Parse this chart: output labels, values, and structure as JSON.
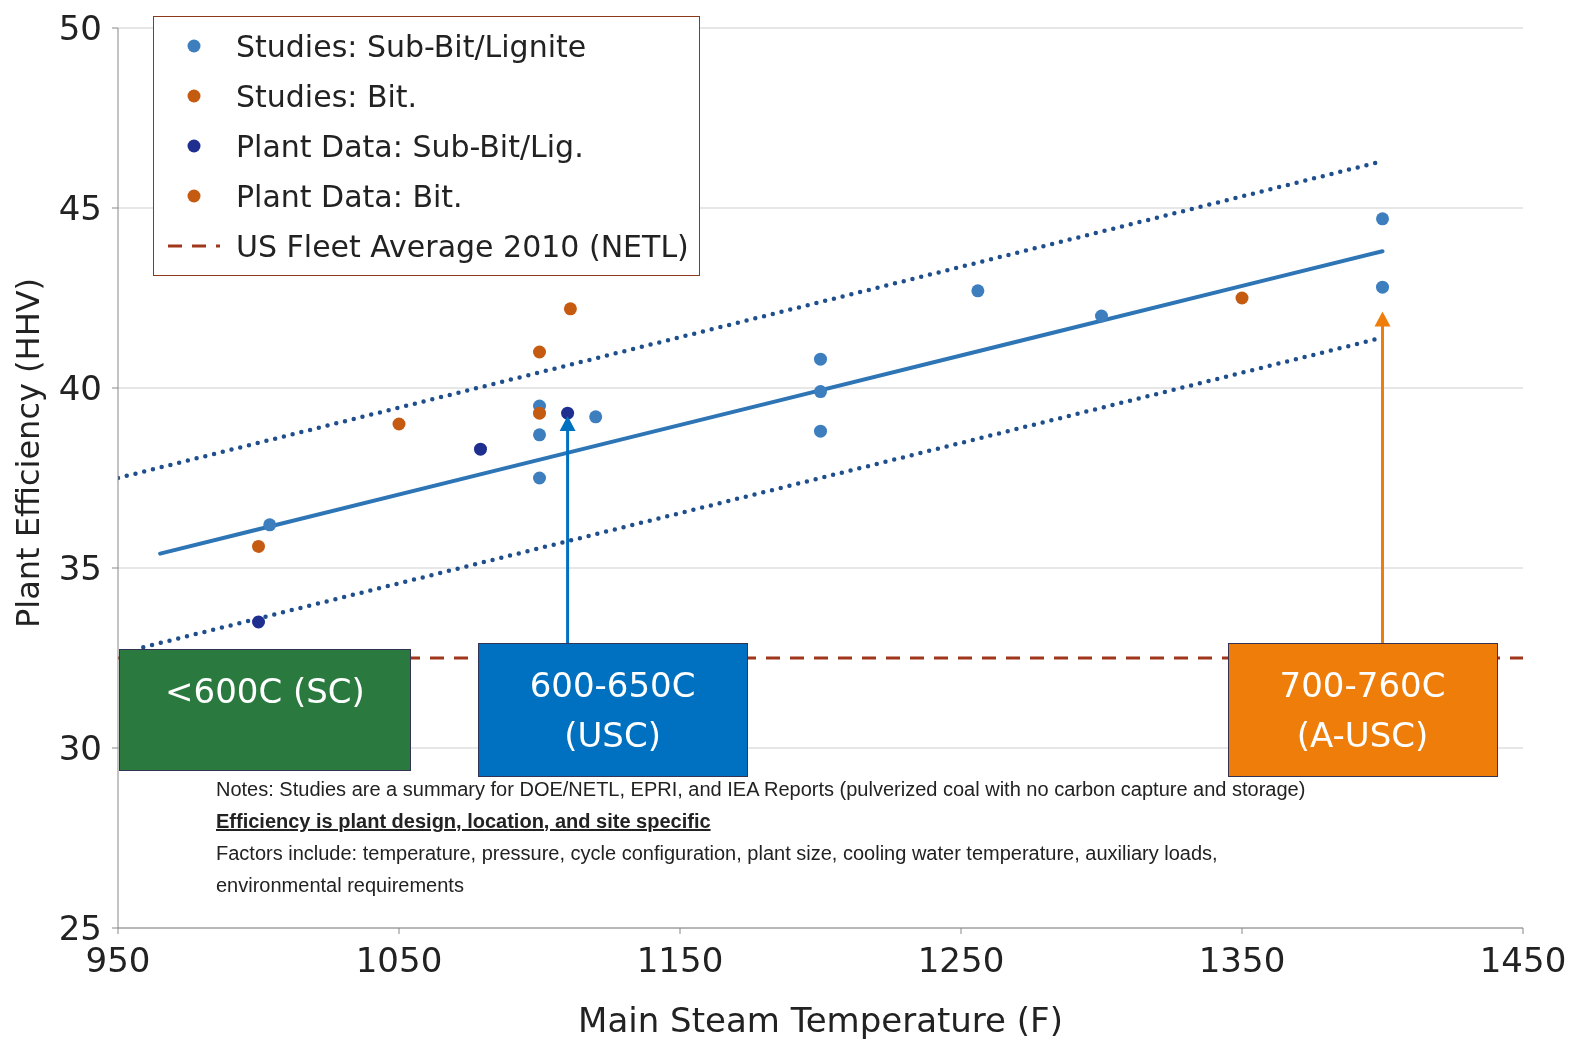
{
  "chart_data": {
    "type": "scatter",
    "xlabel": "Main Steam Temperature (F)",
    "ylabel": "Plant Efficiency (HHV)",
    "xlim": [
      950,
      1450
    ],
    "xticks": [
      950,
      1050,
      1150,
      1250,
      1350,
      1450
    ],
    "ylim": [
      25,
      50
    ],
    "yticks": [
      25,
      30,
      35,
      40,
      45,
      50
    ],
    "grid": "y",
    "legend": "top left",
    "marker": "circle",
    "series": [
      {
        "name": "Studies: Sub-Bit/Lignite",
        "color": "#3d7ebf",
        "x": [
          1004,
          1100,
          1100,
          1100,
          1120,
          1200,
          1200,
          1200,
          1256,
          1300,
          1400,
          1400
        ],
        "values": [
          36.2,
          39.5,
          38.7,
          37.5,
          39.2,
          40.8,
          39.9,
          38.8,
          42.7,
          42.0,
          44.7,
          42.8
        ]
      },
      {
        "name": "Studies: Bit.",
        "color": "#c55a11",
        "x": [
          1050,
          1100,
          1100,
          1111,
          1350
        ],
        "values": [
          39.0,
          41.0,
          39.3,
          42.2,
          42.5
        ]
      },
      {
        "name": "Plant Data: Sub-Bit/Lig.",
        "color": "#1f2f8f",
        "x": [
          1000,
          1079,
          1110
        ],
        "values": [
          33.5,
          38.3,
          39.3
        ]
      },
      {
        "name": "Plant Data: Bit.",
        "color": "#c55a11",
        "x": [
          1000
        ],
        "values": [
          35.6
        ]
      },
      {
        "type": "line",
        "marker": "none",
        "color": "#2e75b6",
        "line_style": "solid",
        "x": [
          965,
          1400
        ],
        "values": [
          35.4,
          43.8
        ]
      },
      {
        "type": "line",
        "marker": "none",
        "color": "#1f4e8c",
        "line_style": "dotted",
        "x": [
          950,
          1400
        ],
        "values": [
          37.5,
          46.3
        ]
      },
      {
        "type": "line",
        "marker": "none",
        "color": "#1f4e8c",
        "line_style": "dotted",
        "x": [
          959,
          1400
        ],
        "values": [
          32.8,
          41.4
        ]
      }
    ],
    "ref_lines": [
      {
        "axis": "y",
        "value": 32.5,
        "label": "US Fleet Average 2010 (NETL)",
        "color": "#a0361a",
        "line_style": "dashed"
      }
    ],
    "annotations": [
      "<600C (SC)",
      "600-650C (USC)",
      "700-760C (A-USC)",
      "Notes: Studies are a summary  for DOE/NETL, EPRI, and IEA Reports (pulverized  coal with no carbon capture and storage)",
      "Efficiency is plant design, location, and site specific",
      "Factors include:  temperature,  pressure,  cycle configuration,  plant size,  cooling water temperature, auxiliary loads, environmental  requirements"
    ]
  }
}
